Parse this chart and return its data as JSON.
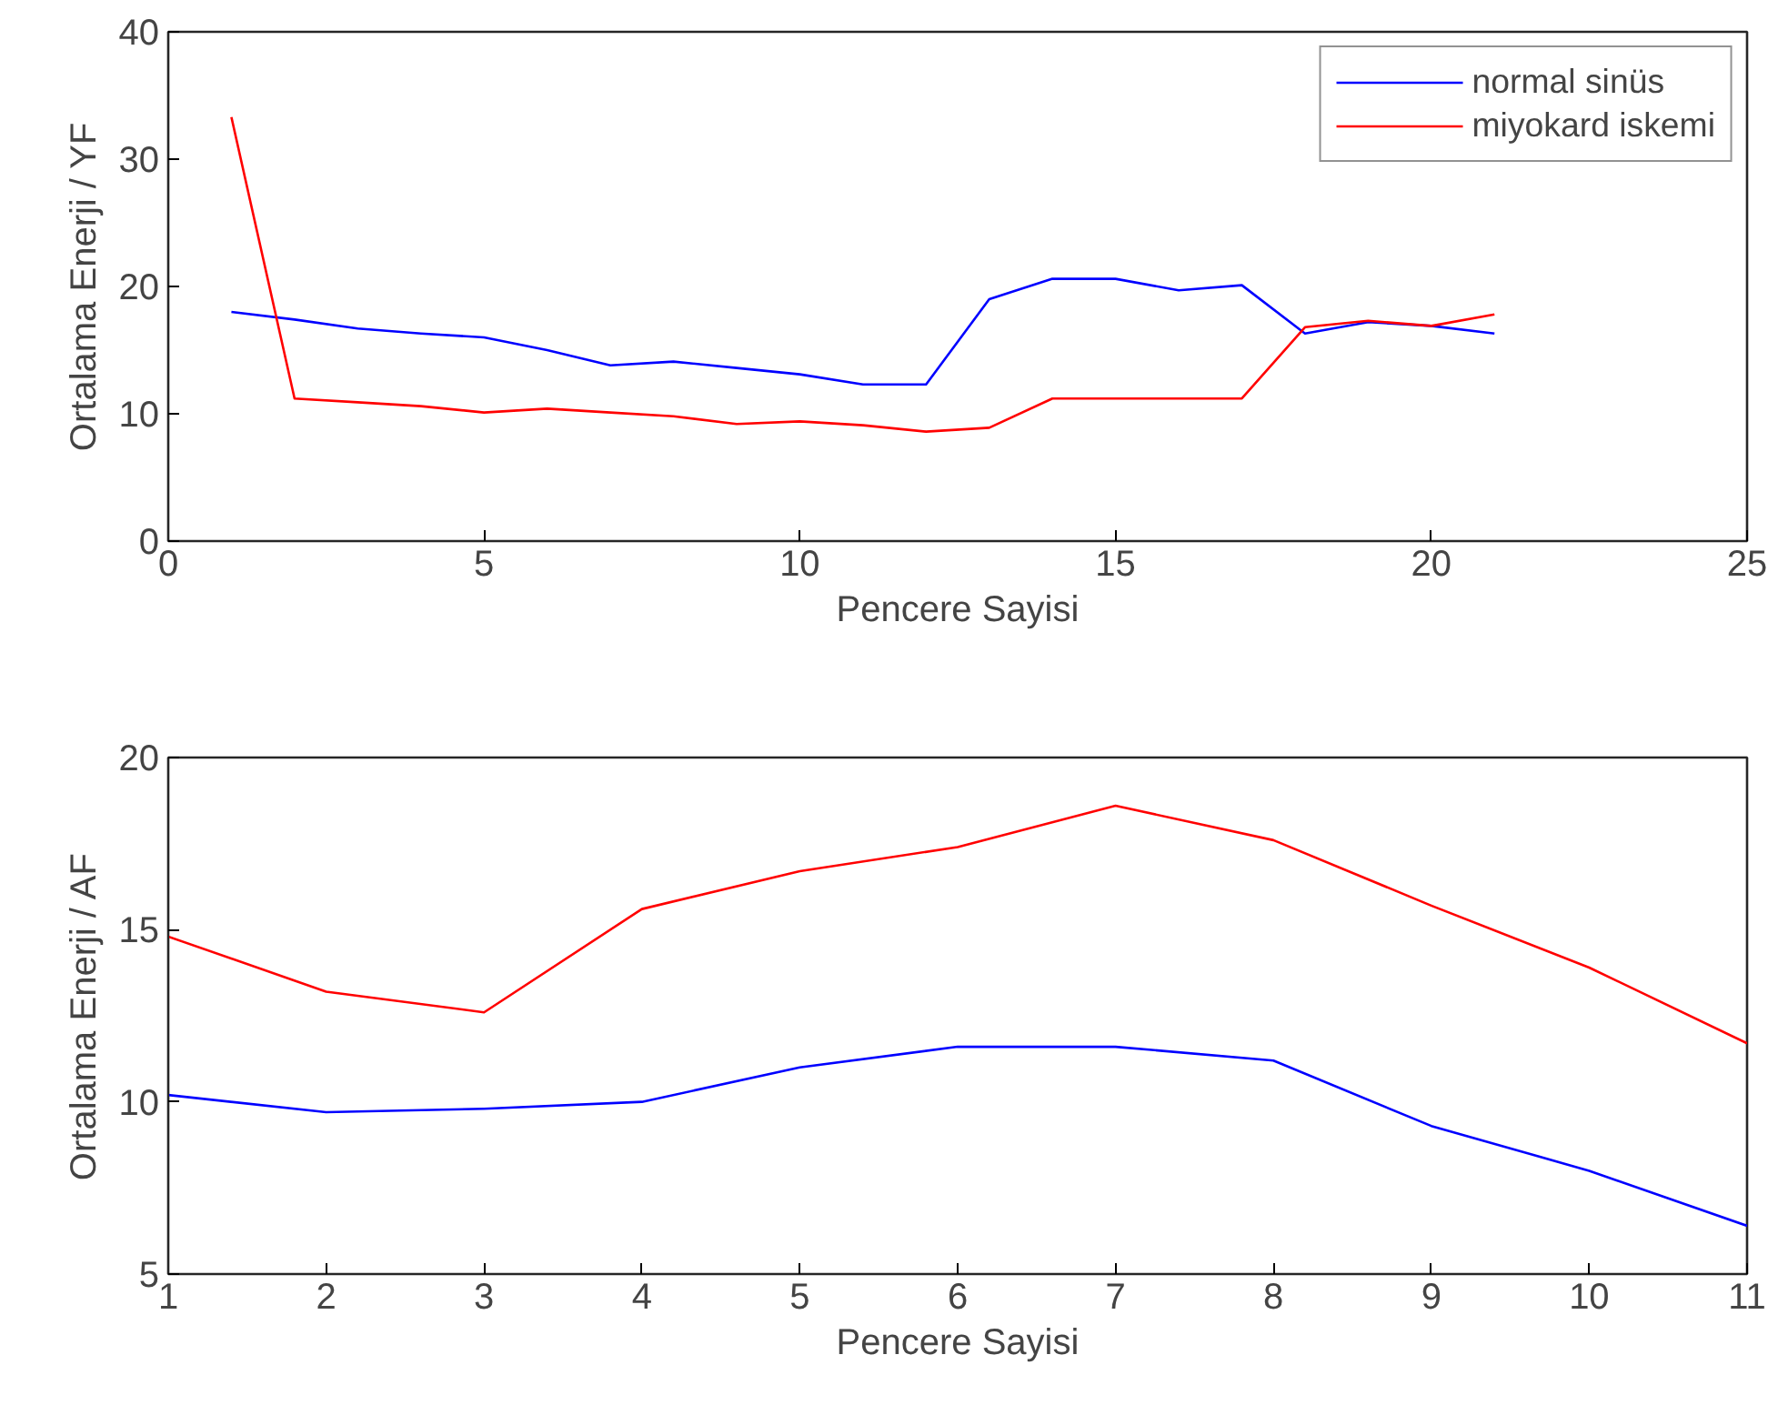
{
  "chart_data": [
    {
      "type": "line",
      "xlabel": "Pencere Sayisi",
      "ylabel": "Ortalama Enerji / YF",
      "x": [
        1,
        2,
        3,
        4,
        5,
        6,
        7,
        8,
        9,
        10,
        11,
        12,
        13,
        14,
        15,
        16,
        17,
        18,
        19,
        20,
        21
      ],
      "series": [
        {
          "name": "normal sinüs",
          "color": "#0000ff",
          "values": [
            18,
            17.4,
            16.7,
            16.3,
            16,
            15,
            13.8,
            14.1,
            13.6,
            13.1,
            12.3,
            12.3,
            19,
            20.6,
            20.6,
            19.7,
            20.1,
            16.3,
            17.2,
            16.9,
            16.3
          ]
        },
        {
          "name": "miyokard iskemi",
          "color": "#ff0000",
          "values": [
            33.3,
            11.2,
            10.9,
            10.6,
            10.1,
            10.4,
            10.1,
            9.8,
            9.2,
            9.4,
            9.1,
            8.6,
            8.9,
            11.2,
            11.2,
            11.2,
            11.2,
            16.8,
            17.3,
            16.9,
            17.8
          ]
        }
      ],
      "xlim": [
        0,
        25
      ],
      "xticks": [
        0,
        5,
        10,
        15,
        20,
        25
      ],
      "ylim": [
        0,
        40
      ],
      "yticks": [
        0,
        10,
        20,
        30,
        40
      ],
      "grid": false,
      "legend": "top right"
    },
    {
      "type": "line",
      "xlabel": "Pencere Sayisi",
      "ylabel": "Ortalama Enerji / AF",
      "x": [
        1,
        2,
        3,
        4,
        5,
        6,
        7,
        8,
        9,
        10,
        11
      ],
      "series": [
        {
          "color": "#0000ff",
          "values": [
            10.2,
            9.7,
            9.8,
            10,
            11,
            11.6,
            11.6,
            11.2,
            9.3,
            8,
            6.4
          ]
        },
        {
          "color": "#ff0000",
          "values": [
            14.8,
            13.2,
            12.6,
            15.6,
            16.7,
            17.4,
            18.6,
            17.6,
            15.7,
            13.9,
            11.7
          ]
        }
      ],
      "xlim": [
        1,
        11
      ],
      "xticks": [
        1,
        2,
        3,
        4,
        5,
        6,
        7,
        8,
        9,
        10,
        11
      ],
      "ylim": [
        5,
        20
      ],
      "yticks": [
        5,
        10,
        15,
        20
      ],
      "grid": false,
      "legend": false
    }
  ]
}
